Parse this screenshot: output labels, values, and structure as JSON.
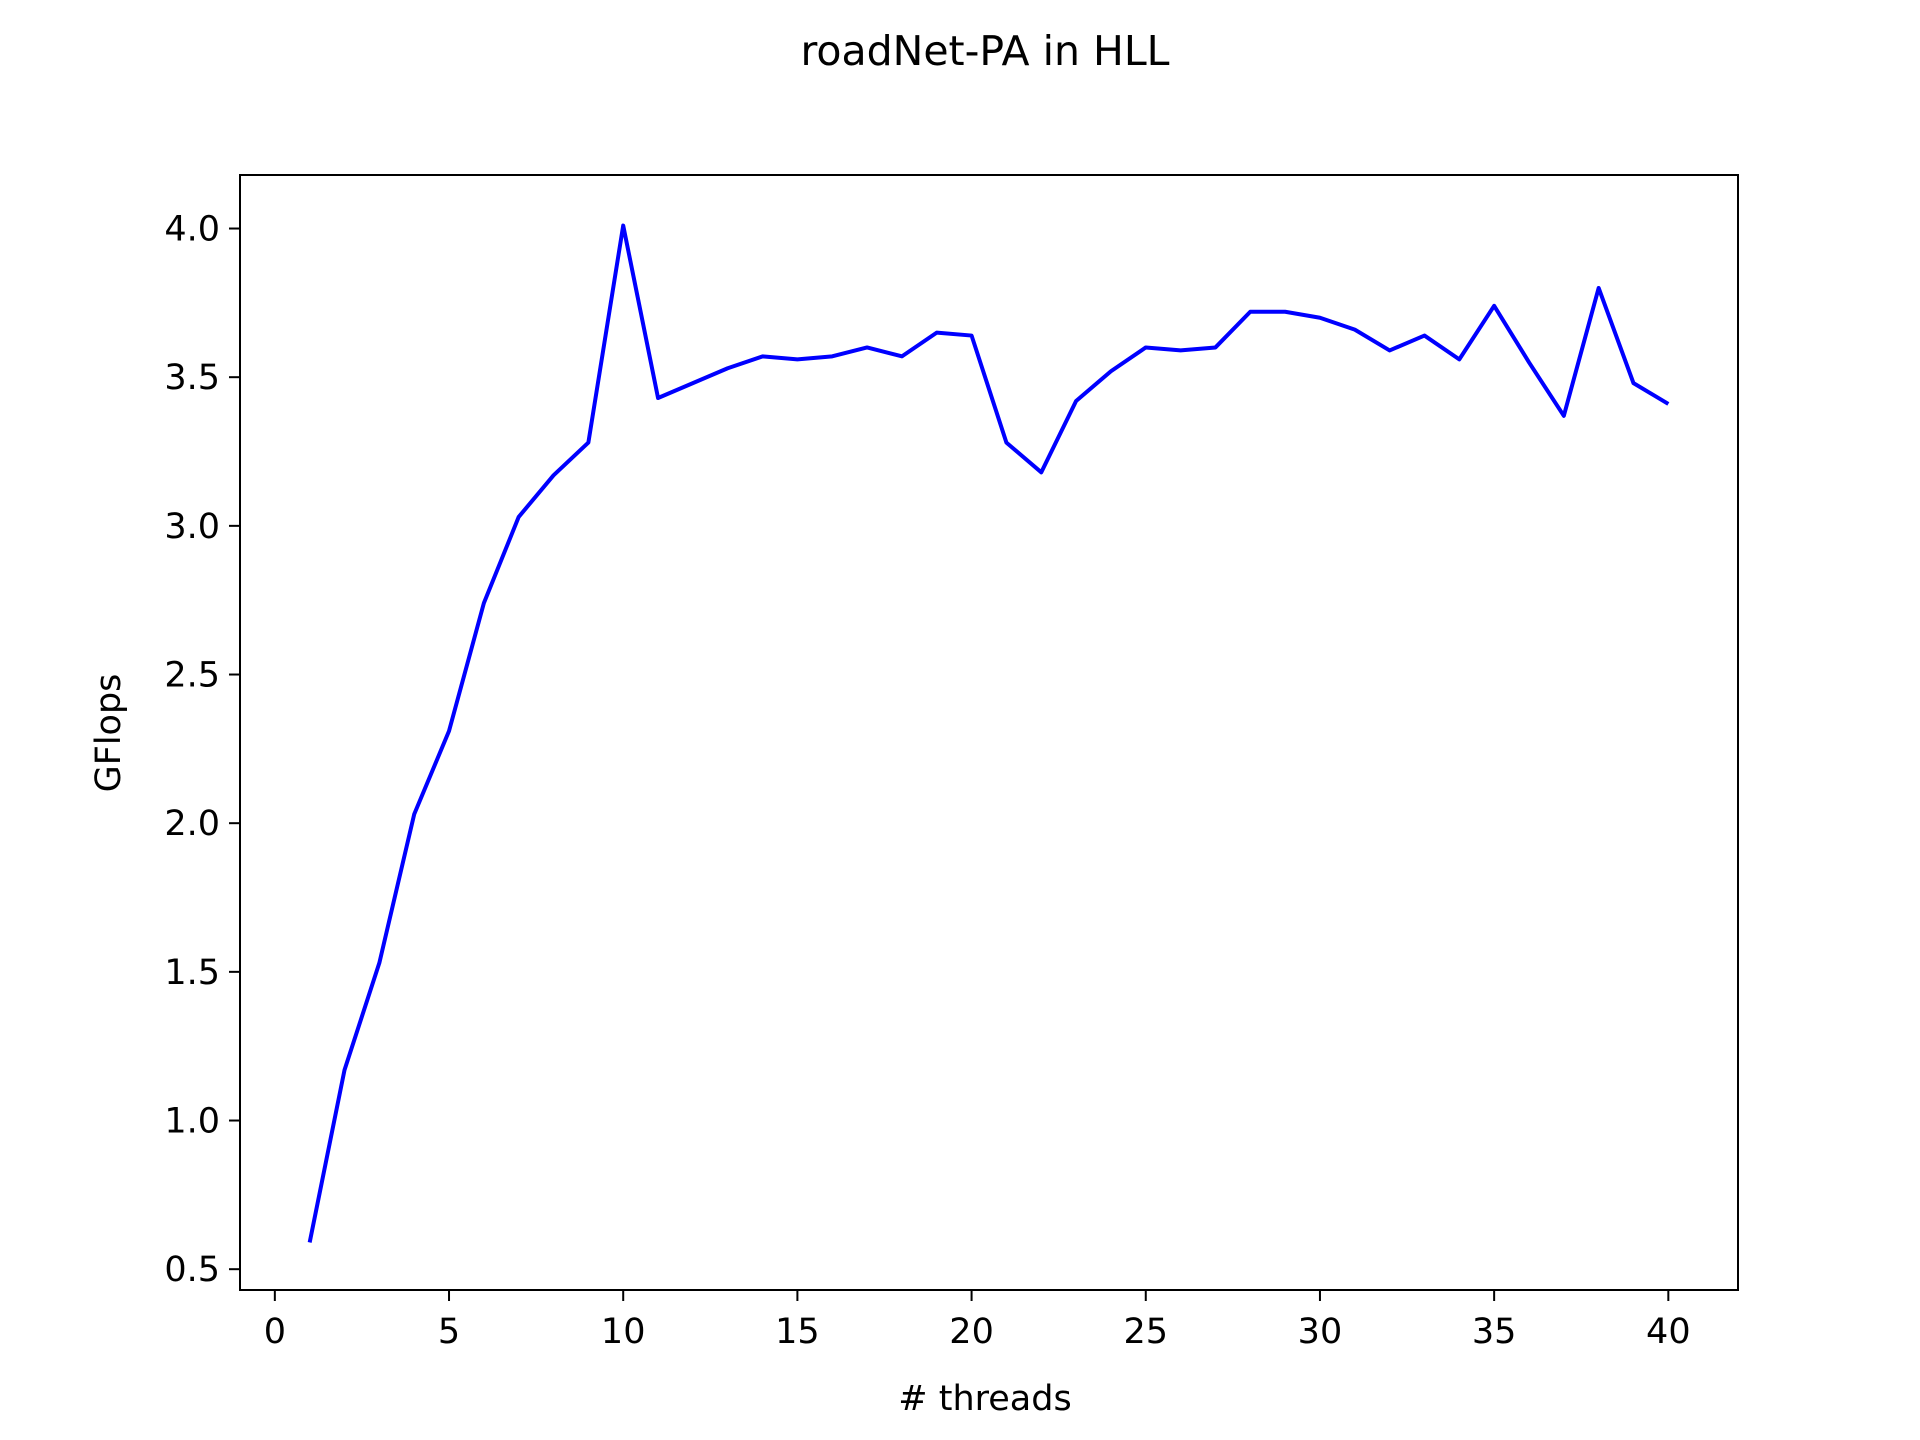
{
  "chart_data": {
    "type": "line",
    "title": "roadNet-PA in HLL",
    "xlabel": "# threads",
    "ylabel": "GFlops",
    "xlim": [
      -1,
      42
    ],
    "ylim": [
      0.43,
      4.18
    ],
    "xticks": [
      0,
      5,
      10,
      15,
      20,
      25,
      30,
      35,
      40
    ],
    "xtick_labels": [
      "0",
      "5",
      "10",
      "15",
      "20",
      "25",
      "30",
      "35",
      "40"
    ],
    "yticks": [
      0.5,
      1.0,
      1.5,
      2.0,
      2.5,
      3.0,
      3.5,
      4.0
    ],
    "ytick_labels": [
      "0.5",
      "1.0",
      "1.5",
      "2.0",
      "2.5",
      "3.0",
      "3.5",
      "4.0"
    ],
    "grid": false,
    "series": [
      {
        "color": "#0000ff",
        "x": [
          1,
          2,
          3,
          4,
          5,
          6,
          7,
          8,
          9,
          10,
          11,
          12,
          13,
          14,
          15,
          16,
          17,
          18,
          19,
          20,
          21,
          22,
          23,
          24,
          25,
          26,
          27,
          28,
          29,
          30,
          31,
          32,
          33,
          34,
          35,
          36,
          37,
          38,
          39,
          40
        ],
        "y": [
          0.59,
          1.17,
          1.53,
          2.03,
          2.31,
          2.74,
          3.03,
          3.17,
          3.28,
          4.01,
          3.43,
          3.48,
          3.53,
          3.57,
          3.56,
          3.57,
          3.6,
          3.57,
          3.65,
          3.64,
          3.28,
          3.18,
          3.42,
          3.52,
          3.6,
          3.59,
          3.6,
          3.72,
          3.72,
          3.7,
          3.66,
          3.59,
          3.64,
          3.56,
          3.74,
          3.55,
          3.37,
          3.8,
          3.48,
          3.41
        ]
      }
    ]
  }
}
